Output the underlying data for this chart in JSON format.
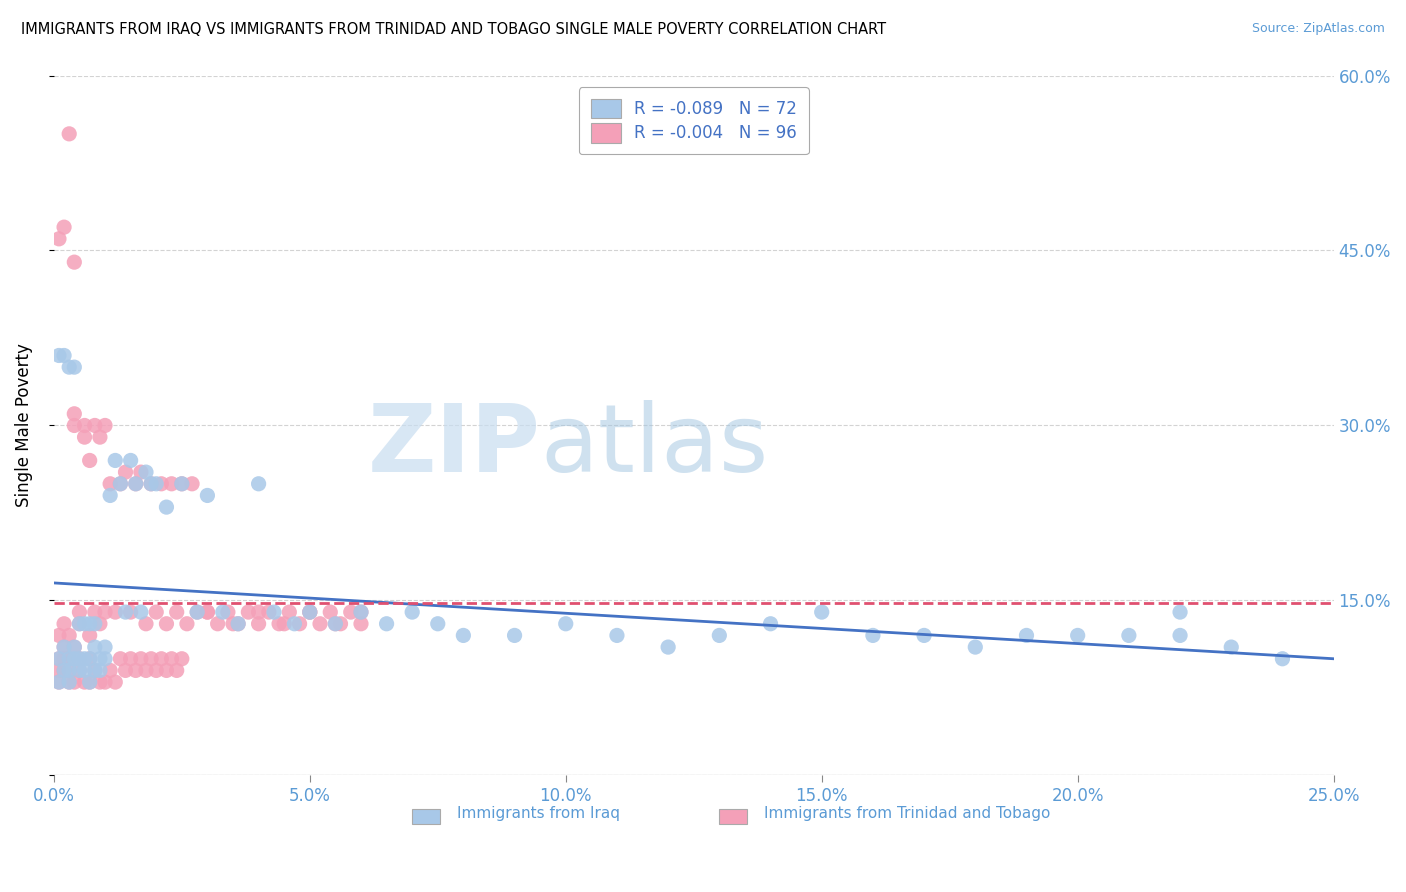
{
  "title": "IMMIGRANTS FROM IRAQ VS IMMIGRANTS FROM TRINIDAD AND TOBAGO SINGLE MALE POVERTY CORRELATION CHART",
  "source": "Source: ZipAtlas.com",
  "ylabel": "Single Male Poverty",
  "xlim": [
    0.0,
    0.25
  ],
  "ylim": [
    0.0,
    0.6
  ],
  "xticks": [
    0.0,
    0.05,
    0.1,
    0.15,
    0.2,
    0.25
  ],
  "yticks": [
    0.0,
    0.15,
    0.3,
    0.45,
    0.6
  ],
  "ytick_labels": [
    "",
    "15.0%",
    "30.0%",
    "45.0%",
    "60.0%"
  ],
  "xtick_labels": [
    "0.0%",
    "5.0%",
    "10.0%",
    "15.0%",
    "20.0%",
    "25.0%"
  ],
  "legend_r1": "R = -0.089   N = 72",
  "legend_r2": "R = -0.004   N = 96",
  "color_iraq": "#a8c8e8",
  "color_tt": "#f4a0b8",
  "line_color_iraq": "#4472c4",
  "line_color_tt": "#e05070",
  "watermark_zip": "ZIP",
  "watermark_atlas": "atlas",
  "iraq_x": [
    0.001,
    0.001,
    0.002,
    0.002,
    0.003,
    0.003,
    0.003,
    0.004,
    0.004,
    0.005,
    0.005,
    0.006,
    0.006,
    0.007,
    0.007,
    0.008,
    0.008,
    0.009,
    0.009,
    0.01,
    0.01,
    0.011,
    0.012,
    0.013,
    0.014,
    0.015,
    0.016,
    0.017,
    0.018,
    0.019,
    0.02,
    0.022,
    0.025,
    0.028,
    0.03,
    0.033,
    0.036,
    0.04,
    0.043,
    0.047,
    0.05,
    0.055,
    0.06,
    0.065,
    0.07,
    0.075,
    0.08,
    0.09,
    0.1,
    0.11,
    0.12,
    0.13,
    0.14,
    0.15,
    0.16,
    0.17,
    0.18,
    0.19,
    0.2,
    0.21,
    0.22,
    0.23,
    0.24,
    0.001,
    0.002,
    0.003,
    0.004,
    0.005,
    0.006,
    0.007,
    0.008,
    0.22
  ],
  "iraq_y": [
    0.1,
    0.08,
    0.09,
    0.11,
    0.1,
    0.08,
    0.09,
    0.1,
    0.11,
    0.09,
    0.1,
    0.1,
    0.09,
    0.08,
    0.1,
    0.09,
    0.11,
    0.1,
    0.09,
    0.1,
    0.11,
    0.24,
    0.27,
    0.25,
    0.14,
    0.27,
    0.25,
    0.14,
    0.26,
    0.25,
    0.25,
    0.23,
    0.25,
    0.14,
    0.24,
    0.14,
    0.13,
    0.25,
    0.14,
    0.13,
    0.14,
    0.13,
    0.14,
    0.13,
    0.14,
    0.13,
    0.12,
    0.12,
    0.13,
    0.12,
    0.11,
    0.12,
    0.13,
    0.14,
    0.12,
    0.12,
    0.11,
    0.12,
    0.12,
    0.12,
    0.12,
    0.11,
    0.1,
    0.36,
    0.36,
    0.35,
    0.35,
    0.13,
    0.13,
    0.13,
    0.13,
    0.14
  ],
  "tt_x": [
    0.001,
    0.001,
    0.001,
    0.002,
    0.002,
    0.002,
    0.003,
    0.003,
    0.003,
    0.004,
    0.004,
    0.004,
    0.005,
    0.005,
    0.005,
    0.006,
    0.006,
    0.007,
    0.007,
    0.007,
    0.008,
    0.008,
    0.009,
    0.009,
    0.01,
    0.01,
    0.011,
    0.012,
    0.013,
    0.014,
    0.015,
    0.016,
    0.017,
    0.018,
    0.019,
    0.02,
    0.021,
    0.022,
    0.023,
    0.024,
    0.025,
    0.026,
    0.027,
    0.028,
    0.03,
    0.032,
    0.034,
    0.036,
    0.038,
    0.04,
    0.042,
    0.044,
    0.046,
    0.048,
    0.05,
    0.052,
    0.054,
    0.056,
    0.058,
    0.06,
    0.001,
    0.002,
    0.003,
    0.004,
    0.005,
    0.006,
    0.007,
    0.008,
    0.009,
    0.01,
    0.011,
    0.012,
    0.013,
    0.014,
    0.015,
    0.016,
    0.017,
    0.018,
    0.019,
    0.02,
    0.021,
    0.022,
    0.023,
    0.024,
    0.025,
    0.03,
    0.035,
    0.04,
    0.045,
    0.05,
    0.055,
    0.06,
    0.001,
    0.002,
    0.003,
    0.004
  ],
  "tt_y": [
    0.1,
    0.12,
    0.09,
    0.11,
    0.13,
    0.1,
    0.12,
    0.1,
    0.09,
    0.11,
    0.3,
    0.31,
    0.1,
    0.13,
    0.14,
    0.29,
    0.3,
    0.27,
    0.1,
    0.12,
    0.3,
    0.14,
    0.29,
    0.13,
    0.14,
    0.3,
    0.25,
    0.14,
    0.25,
    0.26,
    0.14,
    0.25,
    0.26,
    0.13,
    0.25,
    0.14,
    0.25,
    0.13,
    0.25,
    0.14,
    0.25,
    0.13,
    0.25,
    0.14,
    0.14,
    0.13,
    0.14,
    0.13,
    0.14,
    0.13,
    0.14,
    0.13,
    0.14,
    0.13,
    0.14,
    0.13,
    0.14,
    0.13,
    0.14,
    0.13,
    0.08,
    0.09,
    0.08,
    0.08,
    0.09,
    0.08,
    0.08,
    0.09,
    0.08,
    0.08,
    0.09,
    0.08,
    0.1,
    0.09,
    0.1,
    0.09,
    0.1,
    0.09,
    0.1,
    0.09,
    0.1,
    0.09,
    0.1,
    0.09,
    0.1,
    0.14,
    0.13,
    0.14,
    0.13,
    0.14,
    0.13,
    0.14,
    0.46,
    0.47,
    0.55,
    0.44
  ]
}
